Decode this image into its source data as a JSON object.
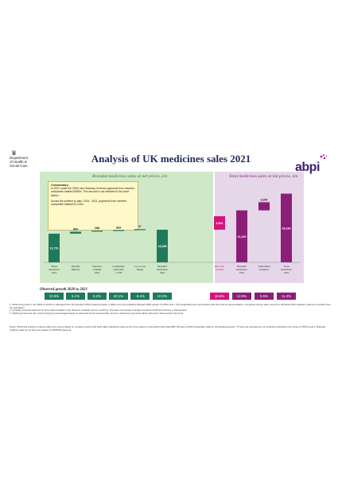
{
  "header": {
    "dh_lines": [
      "Department",
      "of Health &",
      "Social Care"
    ],
    "title": "Analysis of UK medicines sales 2021",
    "brand": "abpi",
    "colors": {
      "title": "#1f2a5a",
      "abpi": "#3d1f6b",
      "green_bar": "#1f7a5c",
      "magenta_bar": "#8b1f78",
      "pink_bar": "#d6137d",
      "green_panel": "#cfe9c8",
      "purple_panel": "#e6d6ea"
    }
  },
  "panels": {
    "left_title": "Branded medicines sales at net prices, £m",
    "right_title": "Total medicines sales at list prices, £m"
  },
  "commentary": {
    "heading": "Commentary:",
    "para1": "In 2021 under the VPAG and Statutory Scheme payments from member companies totalled £565m. This amount is not reflected in the chart below.²",
    "para2": "Across the scheme to date, 2019 - 2021, payments from member companies totalled £2,113m."
  },
  "chart_data": {
    "type": "bar",
    "title": "Analysis of UK medicines sales 2021",
    "categories": [
      "VPAS measured sales",
      "Parallel Imports",
      "Statutory scheme sales",
      "Companies with sales < £5m",
      "Low-Cost Drugs",
      "Branded medicines sales",
      "Discount residual",
      "Branded medicines sales",
      "Unbranded Generics",
      "Total medicines sales"
    ],
    "labels": [
      "11,776",
      "800",
      "288",
      "363",
      "5*",
      "13,398",
      "5,541",
      "21,320",
      "3,350",
      "28,184"
    ],
    "bars": [
      {
        "base": 0,
        "value": 11776,
        "color": "#1f7a5c"
      },
      {
        "base": 11776,
        "value": 800,
        "color": "#1f7a5c"
      },
      {
        "base": 12576,
        "value": 288,
        "color": "#1f7a5c"
      },
      {
        "base": 12864,
        "value": 363,
        "color": "#1f7a5c"
      },
      {
        "base": 13227,
        "value": 5,
        "color": "#1f7a5c"
      },
      {
        "base": 0,
        "value": 13398,
        "color": "#1f7a5c"
      },
      {
        "base": 13398,
        "value": 5541,
        "color": "#d6137d"
      },
      {
        "base": 0,
        "value": 21320,
        "color": "#8b1f78"
      },
      {
        "base": 21320,
        "value": 3350,
        "color": "#8b1f78"
      },
      {
        "base": 0,
        "value": 28184,
        "color": "#8b1f78"
      }
    ],
    "ylim": [
      0,
      30000
    ],
    "xlabel": "",
    "ylabel": ""
  },
  "observed_growth": {
    "label": "Observed growth 2020 to 2021",
    "values": [
      "10.6%",
      "5.1%",
      "5.2%",
      "20.1%",
      "-9.4%",
      "10.2%",
      "18.6%",
      "12.9%",
      "5.5%",
      "11.4%"
    ],
    "colors": [
      "#1f7a5c",
      "#1f7a5c",
      "#1f7a5c",
      "#1f7a5c",
      "#1f7a5c",
      "#1f7a5c",
      "#d6137d",
      "#8b1f78",
      "#8b1f78",
      "#8b1f78"
    ]
  },
  "footnotes": [
    "1. Observed growth in the VPAS at 10.6% is calculated from the absolute VPAS measured sales. It differs from the published allowed VPAS growth of 9.06% (2% + 3% sustainable) as in accordance with the scheme documentation, companies whose sales moved (or fell below) £5m between years are excluded from the calculation.",
    "2. Centrally procured vaccines for price sales included in the 'discount residual' column (~£101m). This does not include centrally procured COVID-19 vaccines or therapeutics.",
    "3. VPAS payments are the result of payment percentages based on observed and forecast growth, and any under/over payments will be factored in future years' payments."
  ],
  "notes": "Notes: VPAS and statutory scheme sales and income based on company returns (Q3 2022 data). Medicines sales at list prices based on Aug 2022 IQVIA data (BPI (Primary) & HPAI (Hospital)); data for unbranded generics. *5 Tests are excluded as not medicines included in the scope of VPAS returns. Branded medicine sales at net price are subject to VPAS/SS payment."
}
